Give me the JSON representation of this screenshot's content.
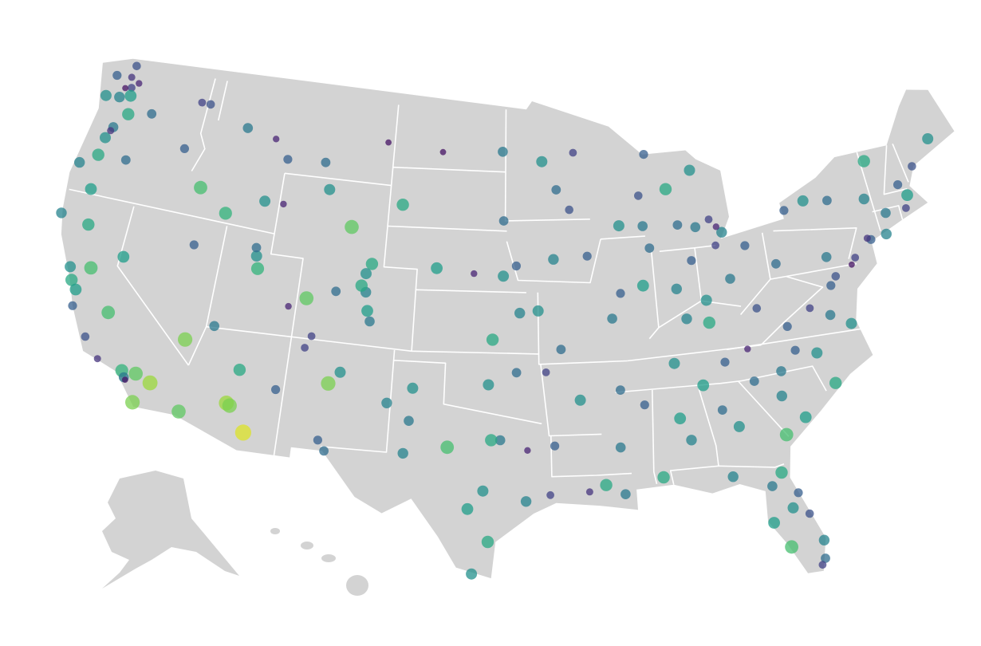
{
  "map": {
    "points": [
      [
        -122.3,
        47.6,
        0.2
      ],
      [
        -122.5,
        48.1,
        0.15
      ],
      [
        -122.9,
        47.0,
        0.45
      ],
      [
        -123.5,
        48.0,
        0.3
      ],
      [
        -122.2,
        47.2,
        0.55
      ],
      [
        -121.9,
        47.9,
        0.1
      ],
      [
        -122.7,
        47.5,
        0.05
      ],
      [
        -117.4,
        47.7,
        0.2
      ],
      [
        -120.5,
        46.6,
        0.35
      ],
      [
        -122.4,
        48.7,
        0.25
      ],
      [
        -123.8,
        46.9,
        0.5
      ],
      [
        -122.0,
        46.3,
        0.6
      ],
      [
        -122.7,
        45.5,
        0.4
      ],
      [
        -123.0,
        44.9,
        0.5
      ],
      [
        -123.1,
        44.0,
        0.6
      ],
      [
        -121.3,
        44.1,
        0.35
      ],
      [
        -122.9,
        42.3,
        0.55
      ],
      [
        -124.1,
        43.4,
        0.45
      ],
      [
        -122.8,
        45.3,
        0.15
      ],
      [
        -117.8,
        45.3,
        0.3
      ],
      [
        -116.2,
        43.6,
        0.7
      ],
      [
        -112.0,
        43.5,
        0.5
      ],
      [
        -116.8,
        47.7,
        0.25
      ],
      [
        -114.3,
        42.6,
        0.65
      ],
      [
        -114.0,
        46.9,
        0.4
      ],
      [
        -111.0,
        45.7,
        0.3
      ],
      [
        -108.5,
        45.8,
        0.35
      ],
      [
        -112.0,
        46.6,
        0.1
      ],
      [
        -104.5,
        47.1,
        0.05
      ],
      [
        -106.3,
        42.8,
        0.75
      ],
      [
        -104.8,
        41.1,
        0.6
      ],
      [
        -108.0,
        44.5,
        0.5
      ],
      [
        -110.8,
        43.5,
        0.1
      ],
      [
        -122.4,
        37.8,
        0.6
      ],
      [
        -122.0,
        37.4,
        0.55
      ],
      [
        -121.5,
        38.6,
        0.7
      ],
      [
        -118.2,
        34.1,
        0.65
      ],
      [
        -117.2,
        32.7,
        0.8
      ],
      [
        -119.8,
        36.7,
        0.7
      ],
      [
        -121.9,
        36.6,
        0.3
      ],
      [
        -122.7,
        38.4,
        0.5
      ],
      [
        -124.2,
        40.8,
        0.45
      ],
      [
        -122.4,
        40.6,
        0.6
      ],
      [
        -117.4,
        34.1,
        0.75
      ],
      [
        -116.5,
        33.8,
        0.85
      ],
      [
        -120.7,
        35.3,
        0.25
      ],
      [
        -118.0,
        33.8,
        0.4
      ],
      [
        -119.7,
        34.4,
        0.15
      ],
      [
        -117.9,
        33.7,
        0.05
      ],
      [
        -115.1,
        36.2,
        0.8
      ],
      [
        -119.8,
        39.5,
        0.55
      ],
      [
        -115.8,
        40.8,
        0.3
      ],
      [
        -111.9,
        40.8,
        0.5
      ],
      [
        -111.7,
        40.2,
        0.65
      ],
      [
        -112.0,
        41.2,
        0.35
      ],
      [
        -113.6,
        37.1,
        0.4
      ],
      [
        -109.5,
        38.6,
        0.1
      ],
      [
        -105.0,
        39.7,
        0.45
      ],
      [
        -104.8,
        38.8,
        0.55
      ],
      [
        -105.3,
        40.0,
        0.6
      ],
      [
        -106.8,
        39.6,
        0.35
      ],
      [
        -108.5,
        39.1,
        0.75
      ],
      [
        -104.6,
        38.3,
        0.4
      ],
      [
        -107.9,
        37.3,
        0.2
      ],
      [
        -105.1,
        40.6,
        0.5
      ],
      [
        -112.1,
        33.5,
        0.85
      ],
      [
        -111.9,
        33.4,
        0.8
      ],
      [
        -110.9,
        32.2,
        0.95
      ],
      [
        -111.7,
        35.2,
        0.6
      ],
      [
        -114.6,
        32.7,
        0.75
      ],
      [
        -109.5,
        34.5,
        0.3
      ],
      [
        -106.6,
        35.1,
        0.8
      ],
      [
        -106.0,
        35.7,
        0.5
      ],
      [
        -106.8,
        32.3,
        0.3
      ],
      [
        -103.2,
        34.4,
        0.45
      ],
      [
        -108.2,
        36.7,
        0.2
      ],
      [
        -97.7,
        30.3,
        0.5
      ],
      [
        -98.5,
        29.4,
        0.55
      ],
      [
        -95.4,
        29.8,
        0.45
      ],
      [
        -96.8,
        32.8,
        0.4
      ],
      [
        -97.3,
        32.8,
        0.6
      ],
      [
        -101.8,
        35.2,
        0.5
      ],
      [
        -101.9,
        33.6,
        0.4
      ],
      [
        -106.4,
        31.8,
        0.35
      ],
      [
        -97.4,
        27.8,
        0.6
      ],
      [
        -94.1,
        30.1,
        0.2
      ],
      [
        -99.7,
        32.4,
        0.7
      ],
      [
        -102.1,
        32.0,
        0.45
      ],
      [
        -95.3,
        32.3,
        0.1
      ],
      [
        -98.2,
        26.2,
        0.5
      ],
      [
        -97.5,
        35.5,
        0.5
      ],
      [
        -95.9,
        36.1,
        0.35
      ],
      [
        -97.3,
        37.7,
        0.6
      ],
      [
        -95.7,
        39.0,
        0.45
      ],
      [
        -96.7,
        40.8,
        0.5
      ],
      [
        -95.9,
        41.3,
        0.3
      ],
      [
        -98.5,
        40.9,
        0.1
      ],
      [
        -100.8,
        41.1,
        0.55
      ],
      [
        -96.8,
        46.9,
        0.4
      ],
      [
        -100.8,
        46.8,
        0.05
      ],
      [
        -96.7,
        43.5,
        0.35
      ],
      [
        -103.2,
        44.1,
        0.6
      ],
      [
        -93.3,
        45.0,
        0.35
      ],
      [
        -92.1,
        46.8,
        0.2
      ],
      [
        -94.2,
        46.4,
        0.5
      ],
      [
        -92.5,
        44.0,
        0.25
      ],
      [
        -93.6,
        41.6,
        0.45
      ],
      [
        -91.5,
        41.7,
        0.3
      ],
      [
        -90.2,
        38.6,
        0.4
      ],
      [
        -94.6,
        39.1,
        0.5
      ],
      [
        -93.3,
        37.2,
        0.35
      ],
      [
        -92.3,
        34.7,
        0.5
      ],
      [
        -94.2,
        36.1,
        0.2
      ],
      [
        -90.1,
        30.0,
        0.4
      ],
      [
        -91.1,
        30.5,
        0.6
      ],
      [
        -93.8,
        32.5,
        0.3
      ],
      [
        -92.0,
        30.2,
        0.15
      ],
      [
        -87.9,
        43.0,
        0.4
      ],
      [
        -89.4,
        43.1,
        0.5
      ],
      [
        -88.0,
        44.5,
        0.25
      ],
      [
        -87.6,
        41.9,
        0.35
      ],
      [
        -88.2,
        40.1,
        0.55
      ],
      [
        -89.6,
        39.8,
        0.3
      ],
      [
        -83.0,
        42.3,
        0.45
      ],
      [
        -85.7,
        42.9,
        0.35
      ],
      [
        -84.6,
        42.7,
        0.4
      ],
      [
        -83.7,
        43.0,
        0.2
      ],
      [
        -84.5,
        45.5,
        0.5
      ],
      [
        -87.4,
        46.5,
        0.3
      ],
      [
        -86.2,
        44.7,
        0.6
      ],
      [
        -83.3,
        42.6,
        0.1
      ],
      [
        -86.2,
        39.8,
        0.45
      ],
      [
        -85.1,
        41.1,
        0.3
      ],
      [
        -82.9,
        40.0,
        0.4
      ],
      [
        -84.5,
        39.1,
        0.5
      ],
      [
        -81.7,
        41.5,
        0.3
      ],
      [
        -83.5,
        41.7,
        0.2
      ],
      [
        -85.8,
        38.3,
        0.45
      ],
      [
        -84.5,
        38.0,
        0.6
      ],
      [
        -86.8,
        36.2,
        0.5
      ],
      [
        -90.0,
        35.1,
        0.35
      ],
      [
        -83.9,
        36.0,
        0.3
      ],
      [
        -85.3,
        35.0,
        0.55
      ],
      [
        -82.5,
        36.5,
        0.1
      ],
      [
        -90.2,
        32.3,
        0.4
      ],
      [
        -88.7,
        34.3,
        0.3
      ],
      [
        -86.8,
        33.5,
        0.55
      ],
      [
        -86.3,
        32.4,
        0.45
      ],
      [
        -88.0,
        30.7,
        0.6
      ],
      [
        -84.4,
        33.7,
        0.35
      ],
      [
        -83.6,
        32.8,
        0.5
      ],
      [
        -81.1,
        32.1,
        0.7
      ],
      [
        -84.3,
        30.4,
        0.45
      ],
      [
        -81.7,
        30.3,
        0.6
      ],
      [
        -81.4,
        28.5,
        0.5
      ],
      [
        -82.5,
        27.9,
        0.55
      ],
      [
        -80.2,
        25.8,
        0.35
      ],
      [
        -80.1,
        26.7,
        0.45
      ],
      [
        -81.8,
        26.6,
        0.7
      ],
      [
        -82.3,
        29.7,
        0.4
      ],
      [
        -80.6,
        28.1,
        0.25
      ],
      [
        -81.0,
        29.2,
        0.3
      ],
      [
        -80.4,
        25.5,
        0.2
      ],
      [
        -80.8,
        35.2,
        0.4
      ],
      [
        -78.6,
        35.8,
        0.5
      ],
      [
        -79.8,
        36.1,
        0.3
      ],
      [
        -77.9,
        34.2,
        0.6
      ],
      [
        -81.0,
        34.0,
        0.45
      ],
      [
        -79.9,
        32.8,
        0.55
      ],
      [
        -82.4,
        34.9,
        0.35
      ],
      [
        -77.4,
        37.5,
        0.4
      ],
      [
        -76.3,
        36.9,
        0.5
      ],
      [
        -80.0,
        37.3,
        0.3
      ],
      [
        -78.5,
        38.0,
        0.2
      ],
      [
        -81.6,
        38.4,
        0.25
      ],
      [
        -77.0,
        38.9,
        0.3
      ],
      [
        -76.6,
        39.3,
        0.25
      ],
      [
        -75.2,
        40.0,
        0.2
      ],
      [
        -80.0,
        40.4,
        0.35
      ],
      [
        -76.9,
        40.3,
        0.4
      ],
      [
        -74.0,
        40.7,
        0.3
      ],
      [
        -74.2,
        40.8,
        0.15
      ],
      [
        -73.8,
        42.7,
        0.45
      ],
      [
        -76.1,
        43.0,
        0.35
      ],
      [
        -77.6,
        43.2,
        0.5
      ],
      [
        -78.9,
        42.9,
        0.3
      ],
      [
        -72.7,
        41.8,
        0.4
      ],
      [
        -71.4,
        41.8,
        0.2
      ],
      [
        -71.1,
        42.4,
        0.55
      ],
      [
        -71.5,
        43.0,
        0.3
      ],
      [
        -70.3,
        43.7,
        0.25
      ],
      [
        -68.8,
        44.8,
        0.5
      ],
      [
        -73.2,
        44.5,
        0.6
      ],
      [
        -75.5,
        39.7,
        0.05
      ],
      [
        -73.0,
        40.8,
        0.45
      ]
    ]
  }
}
